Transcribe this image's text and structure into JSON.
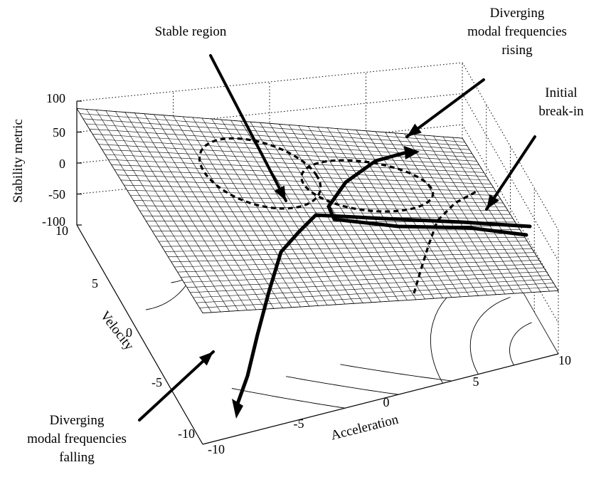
{
  "chart_data": {
    "type": "surface",
    "zlabel": "Stability metric",
    "xlabel": "Acceleration",
    "ylabel": "Velocity",
    "xlim": [
      -10,
      10
    ],
    "ylim": [
      -10,
      10
    ],
    "zlim": [
      -100,
      100
    ],
    "x_ticks": [
      "-10",
      "-5",
      "0",
      "5",
      "10"
    ],
    "y_ticks": [
      "-10",
      "-5",
      "0",
      "5",
      "10"
    ],
    "z_ticks": [
      "-100",
      "-50",
      "0",
      "50",
      "100"
    ],
    "grid": true,
    "annotations": [
      {
        "lines": [
          "Stable region"
        ]
      },
      {
        "lines": [
          "Diverging",
          "modal frequencies",
          "rising"
        ]
      },
      {
        "lines": [
          "Initial",
          "break-in"
        ]
      },
      {
        "lines": [
          "Diverging",
          "modal frequencies",
          "falling"
        ]
      }
    ]
  }
}
